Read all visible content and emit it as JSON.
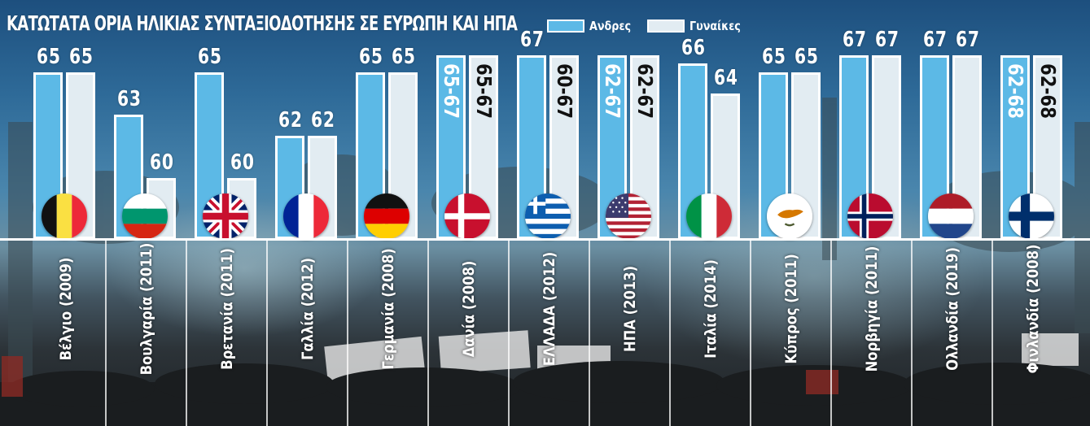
{
  "title": "ΚΑΤΩΤΑΤΑ ΟΡΙΑ ΗΛΙΚΙΑΣ ΣΥΝΤΑΞΙΟΔΟΤΗΣΗΣ ΣΕ ΕΥΡΩΠΗ ΚΑΙ ΗΠΑ",
  "colors": {
    "men": "#5cb9e6",
    "women": "#e2ecf2",
    "bar_border": "#ffffff"
  },
  "chart_data": {
    "type": "bar",
    "title": "ΚΑΤΩΤΑΤΑ ΟΡΙΑ ΗΛΙΚΙΑΣ ΣΥΝΤΑΞΙΟΔΟΤΗΣΗΣ ΣΕ ΕΥΡΩΠΗ ΚΑΙ ΗΠΑ",
    "legend": {
      "placement": "top",
      "entries": [
        "Ανδρες",
        "Γυναίκες"
      ]
    },
    "grid": false,
    "xlabel": "",
    "ylabel": "",
    "categories": [
      "Βέλγιο (2009)",
      "Βουλγαρία (2011)",
      "Βρετανία (2011)",
      "Γαλλία (2012)",
      "Γερμανία (2008)",
      "Δανία (2008)",
      "ΕΛΛΑΔΑ (2012)",
      "ΗΠΑ (2013)",
      "Ιταλία (2014)",
      "Κύπρος (2011)",
      "Νορβηγία (2011)",
      "Ολλανδία (2019)",
      "Φινλανδία (2008)"
    ],
    "flags": [
      "belgium-flag-icon",
      "bulgaria-flag-icon",
      "uk-flag-icon",
      "france-flag-icon",
      "germany-flag-icon",
      "denmark-flag-icon",
      "greece-flag-icon",
      "usa-flag-icon",
      "italy-flag-icon",
      "cyprus-flag-icon",
      "norway-flag-icon",
      "netherlands-flag-icon",
      "finland-flag-icon"
    ],
    "series": [
      {
        "name": "Ανδρες",
        "values": [
          65,
          63,
          65,
          62,
          65,
          [
            65,
            67
          ],
          67,
          [
            62,
            67
          ],
          66,
          65,
          67,
          67,
          [
            62,
            68
          ]
        ],
        "labels": [
          "65",
          "63",
          "65",
          "62",
          "65",
          "65-67",
          "67",
          "62-67",
          "66",
          "65",
          "67",
          "67",
          "62-68"
        ]
      },
      {
        "name": "Γυναίκες",
        "values": [
          65,
          60,
          60,
          62,
          65,
          [
            65,
            67
          ],
          [
            60,
            67
          ],
          [
            62,
            67
          ],
          64,
          65,
          67,
          67,
          [
            62,
            68
          ]
        ],
        "labels": [
          "65",
          "60",
          "60",
          "62",
          "65",
          "65-67",
          "60-67",
          "62-67",
          "64",
          "65",
          "67",
          "67",
          "62-68"
        ]
      }
    ]
  }
}
